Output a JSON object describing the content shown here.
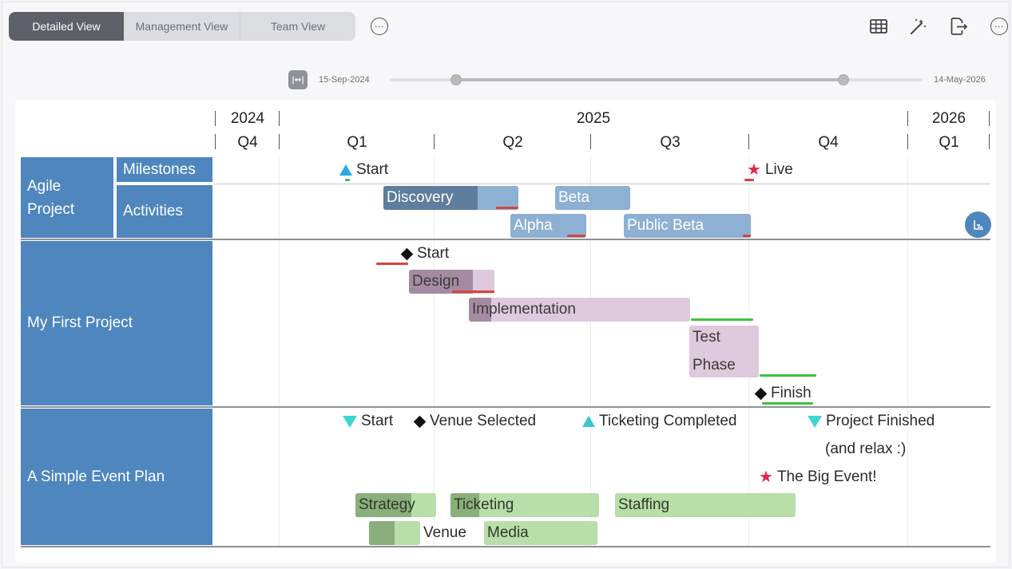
{
  "toolbar": {
    "tabs": [
      "Detailed View",
      "Management View",
      "Team View"
    ],
    "more_label": "···",
    "right_icons": [
      "table-icon",
      "magic-wand-icon",
      "export-icon",
      "more-icon"
    ]
  },
  "range": {
    "start_date": "15-Sep-2024",
    "end_date": "14-May-2026",
    "fit_icon": "|↔|"
  },
  "timeline": {
    "years": [
      "2024",
      "2025",
      "2026"
    ],
    "quarters": [
      "Q4",
      "Q1",
      "Q2",
      "Q3",
      "Q4",
      "Q1"
    ]
  },
  "rows": {
    "agile": {
      "label": "Agile Project",
      "swimlanes": [
        "Milestones",
        "Activities"
      ],
      "milestones": [
        {
          "label": "Start",
          "shape": "triangle-up",
          "color": "#29a9de"
        },
        {
          "label": "Live",
          "shape": "star",
          "color": "#e0264a"
        }
      ],
      "activities": [
        "Discovery",
        "Beta",
        "Alpha",
        "Public Beta"
      ]
    },
    "first": {
      "label": "My First Project",
      "milestones": [
        {
          "label": "Start",
          "shape": "diamond"
        },
        {
          "label": "Finish",
          "shape": "diamond"
        }
      ],
      "activities": [
        "Design",
        "Implementation",
        "Test",
        "Phase"
      ]
    },
    "event": {
      "label": "A Simple Event Plan",
      "milestones": [
        {
          "label": "Start",
          "shape": "triangle-down"
        },
        {
          "label": "Venue Selected",
          "shape": "diamond"
        },
        {
          "label": "Ticketing Completed",
          "shape": "triangle-up"
        },
        {
          "label": "Project Finished",
          "shape": "triangle-down"
        },
        {
          "label": "(and relax :)",
          "shape": "none"
        },
        {
          "label": "The Big Event!",
          "shape": "star"
        }
      ],
      "activities": [
        "Strategy",
        "Ticketing",
        "Staffing",
        "Venue",
        "Media"
      ]
    }
  },
  "colors": {
    "row_header": "#4e86bd",
    "blue_bar": "#8db0d3",
    "purple_bar": "#dfc9dc",
    "green_bar": "#b8dea9",
    "late": "#d9433a",
    "on_time": "#3cc43a"
  }
}
